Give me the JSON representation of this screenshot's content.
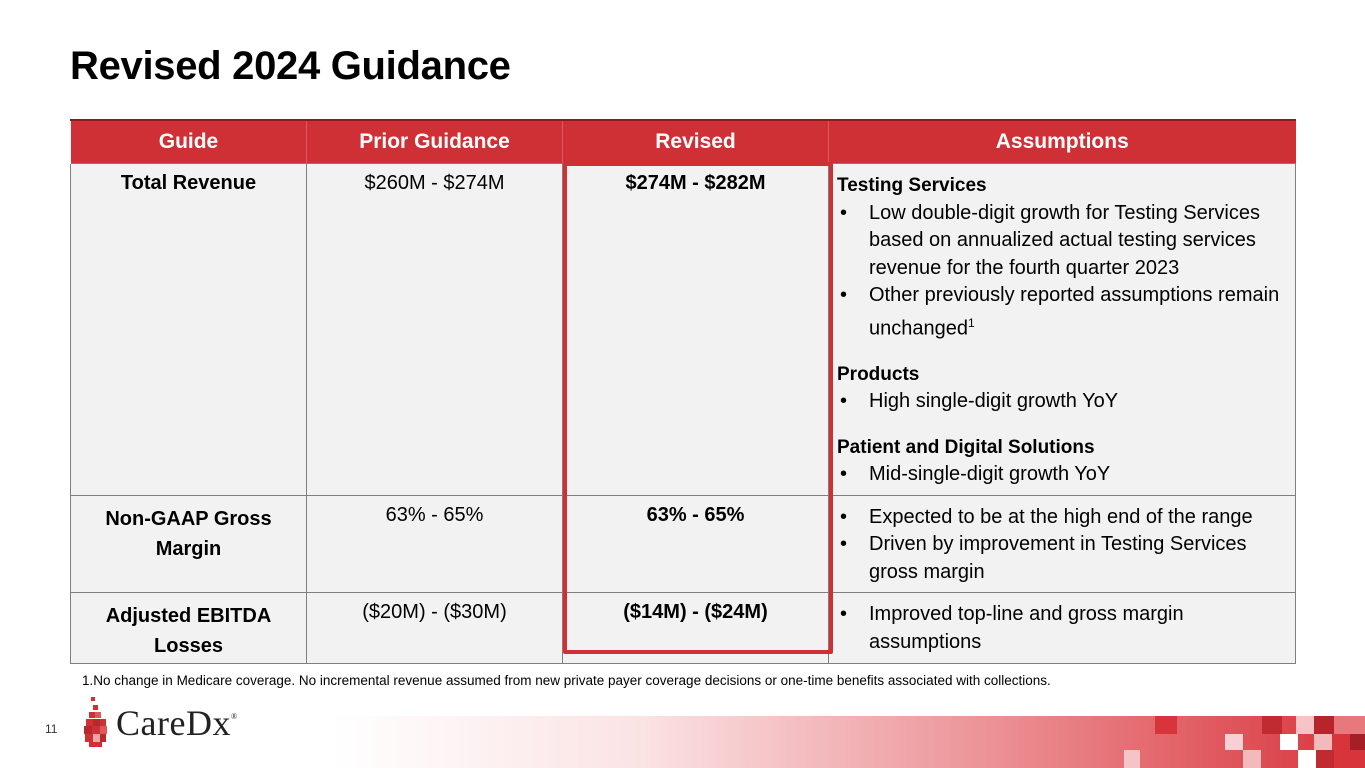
{
  "title": "Revised 2024 Guidance",
  "table": {
    "headers": [
      "Guide",
      "Prior Guidance",
      "Revised",
      "Assumptions"
    ],
    "rows": [
      {
        "guide": "Total Revenue",
        "prior": "$260M - $274M",
        "revised": "$274M - $282M",
        "sections": [
          {
            "heading": "Testing Services",
            "bullets": [
              "Low double-digit growth for Testing Services based on annualized actual testing services revenue for the fourth quarter 2023",
              "Other previously reported assumptions remain unchanged"
            ],
            "superscript": "1"
          },
          {
            "heading": "Products",
            "bullets": [
              "High single-digit growth YoY"
            ]
          },
          {
            "heading": "Patient and Digital Solutions",
            "bullets": [
              "Mid-single-digit growth YoY"
            ]
          }
        ]
      },
      {
        "guide": "Non-GAAP Gross Margin",
        "prior": "63% - 65%",
        "revised": "63% - 65%",
        "bullets": [
          "Expected to be at the high end of the range",
          "Driven by improvement in Testing Services gross margin"
        ]
      },
      {
        "guide": "Adjusted EBITDA Losses",
        "prior": "($20M) - ($30M)",
        "revised": "($14M) - ($24M)",
        "bullets": [
          "Improved top-line and gross margin assumptions"
        ]
      }
    ]
  },
  "footnote": "1.No change in Medicare coverage. No incremental revenue assumed from new private payer coverage decisions or one-time benefits associated with collections.",
  "page_number": "11",
  "logo": {
    "text": "CareDx",
    "registered": "®"
  },
  "colors": {
    "accent": "#cf3036",
    "cell_bg": "#f2f2f2",
    "border": "#7f7f7f"
  }
}
